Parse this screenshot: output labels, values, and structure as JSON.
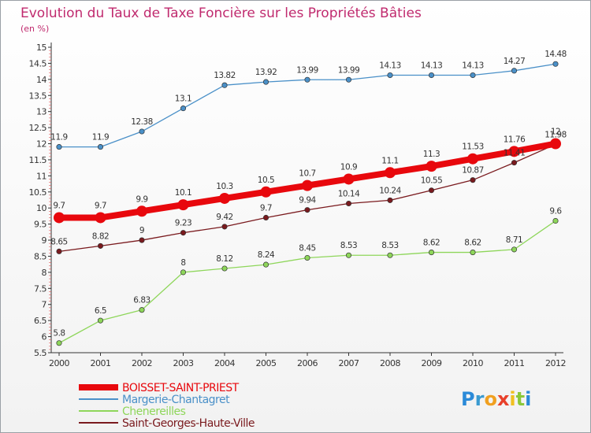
{
  "chart_data": {
    "type": "line",
    "title": "Evolution du Taux de Taxe Foncière sur les Propriétés Bâties",
    "subtitle": "(en %)",
    "xlabel": "",
    "ylabel": "",
    "x": [
      "2000",
      "2001",
      "2002",
      "2003",
      "2004",
      "2005",
      "2006",
      "2007",
      "2008",
      "2009",
      "2010",
      "2011",
      "2012"
    ],
    "ylim": [
      5.5,
      15
    ],
    "yticks": [
      "5.5",
      "6",
      "6.5",
      "7",
      "7.5",
      "8",
      "8.5",
      "9",
      "9.5",
      "10",
      "10.5",
      "11",
      "11.5",
      "12",
      "12.5",
      "13",
      "13.5",
      "14",
      "14.5",
      "15"
    ],
    "grid": false,
    "legend_position": "bottom-left",
    "series": [
      {
        "name": "Margerie-Chantagret",
        "color": "#4a90c8",
        "values": [
          11.9,
          11.9,
          12.38,
          13.1,
          13.82,
          13.92,
          13.99,
          13.99,
          14.13,
          14.13,
          14.13,
          14.27,
          14.48
        ],
        "labels": [
          "11.9",
          "11.9",
          "12.38",
          "13.1",
          "13.82",
          "13.92",
          "13.99",
          "13.99",
          "14.13",
          "14.13",
          "14.13",
          "14.27",
          "14.48"
        ]
      },
      {
        "name": "Chenereilles",
        "color": "#8ed65a",
        "values": [
          5.8,
          6.5,
          6.83,
          8,
          8.12,
          8.24,
          8.45,
          8.53,
          8.53,
          8.62,
          8.62,
          8.71,
          9.6
        ],
        "labels": [
          "5.8",
          "6.5",
          "6.83",
          "8",
          "8.12",
          "8.24",
          "8.45",
          "8.53",
          "8.53",
          "8.62",
          "8.62",
          "8.71",
          "9.6"
        ]
      },
      {
        "name": "Saint-Georges-Haute-Ville",
        "color": "#7a1a1e",
        "values": [
          8.65,
          8.82,
          9,
          9.23,
          9.42,
          9.7,
          9.94,
          10.14,
          10.24,
          10.55,
          10.87,
          11.41,
          11.98
        ],
        "labels": [
          "8.65",
          "8.82",
          "9",
          "9.23",
          "9.42",
          "9.7",
          "9.94",
          "10.14",
          "10.24",
          "10.55",
          "10.87",
          "11.41",
          "11.98"
        ]
      },
      {
        "name": "BOISSET-SAINT-PRIEST",
        "color": "#e8080d",
        "values": [
          9.7,
          9.7,
          9.9,
          10.1,
          10.3,
          10.5,
          10.7,
          10.9,
          11.1,
          11.3,
          11.53,
          11.76,
          12
        ],
        "labels": [
          "9.7",
          "9.7",
          "9.9",
          "10.1",
          "10.3",
          "10.5",
          "10.7",
          "10.9",
          "11.1",
          "11.3",
          "11.53",
          "11.76",
          "12"
        ]
      }
    ],
    "legend": [
      {
        "name": "BOISSET-SAINT-PRIEST",
        "color": "#e8080d"
      },
      {
        "name": "Margerie-Chantagret",
        "color": "#4a90c8"
      },
      {
        "name": "Chenereilles",
        "color": "#8ed65a"
      },
      {
        "name": "Saint-Georges-Haute-Ville",
        "color": "#7a1a1e"
      }
    ]
  },
  "logo": {
    "letters": [
      "P",
      "r",
      "o",
      "x",
      "i",
      "t",
      "i"
    ],
    "colors": [
      "#2b8ad8",
      "#3a9ad0",
      "#f0a020",
      "#e8402a",
      "#f0c020",
      "#8ac83a",
      "#2b8ad8"
    ]
  }
}
